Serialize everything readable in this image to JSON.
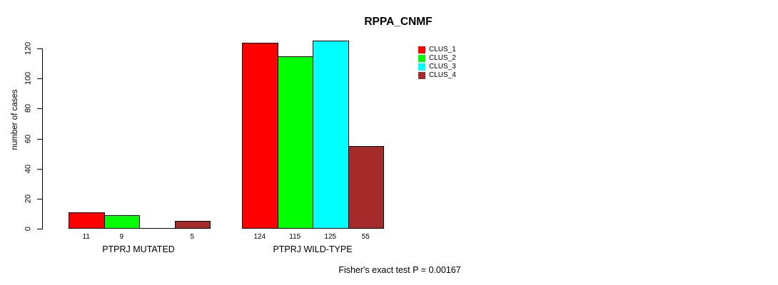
{
  "chart_data": {
    "type": "bar",
    "title": "RPPA_CNMF",
    "ylabel": "number of cases",
    "xlabel": "",
    "categories": [
      "PTPRJ MUTATED",
      "PTPRJ WILD-TYPE"
    ],
    "series": [
      {
        "name": "CLUS_1",
        "color": "#FF0000",
        "values": [
          11,
          124
        ]
      },
      {
        "name": "CLUS_2",
        "color": "#00FF00",
        "values": [
          9,
          115
        ]
      },
      {
        "name": "CLUS_3",
        "color": "#00FFFF",
        "values": [
          0,
          125
        ]
      },
      {
        "name": "CLUS_4",
        "color": "#A52A2A",
        "values": [
          5,
          55
        ]
      }
    ],
    "bar_labels": [
      [
        "11",
        "9",
        "",
        "5"
      ],
      [
        "124",
        "115",
        "125",
        "55"
      ]
    ],
    "yticks": [
      0,
      20,
      40,
      60,
      80,
      100,
      120
    ],
    "ylim": [
      0,
      125
    ],
    "grid": "off",
    "legend_position": "top-right",
    "bar_border_color": "#000000",
    "axis_color": "#000000",
    "annotation": "Fisher's exact test P = 0.00167"
  }
}
